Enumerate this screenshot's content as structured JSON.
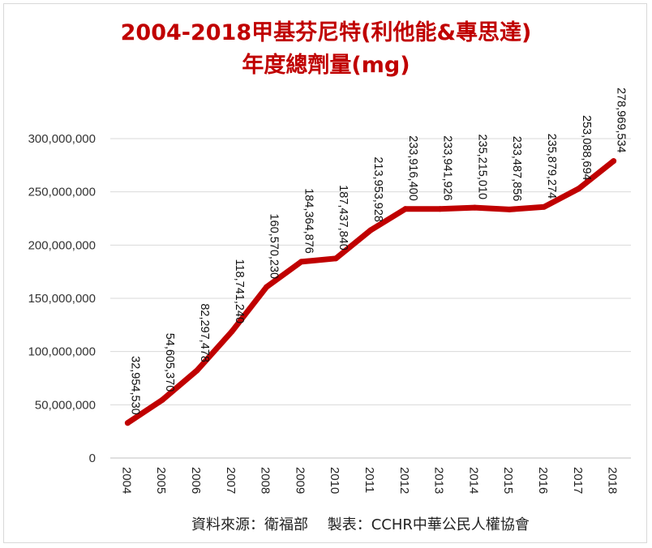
{
  "title_line1": "2004-2018甲基芬尼特(利他能&專思達)",
  "title_line2": "年度總劑量(mg)",
  "footer": "資料來源：衛福部　 製表：CCHR中華公民人權協會",
  "colors": {
    "line": "#c00000",
    "title": "#c00000",
    "grid": "#d9d9d9"
  },
  "chart_data": {
    "type": "line",
    "grid": true,
    "ylim": [
      0,
      300000000
    ],
    "yticks": [
      0,
      50000000,
      100000000,
      150000000,
      200000000,
      250000000,
      300000000
    ],
    "ytick_labels": [
      "0",
      "50,000,000",
      "100,000,000",
      "150,000,000",
      "200,000,000",
      "250,000,000",
      "300,000,000"
    ],
    "categories": [
      "2004",
      "2005",
      "2006",
      "2007",
      "2008",
      "2009",
      "2010",
      "2011",
      "2012",
      "2013",
      "2014",
      "2015",
      "2016",
      "2017",
      "2018"
    ],
    "values": [
      32954530,
      54605370,
      82297478,
      118741240,
      160570230,
      184364876,
      187437840,
      213953928,
      233916400,
      233941926,
      235215010,
      233487856,
      235879274,
      253088694,
      278969534
    ],
    "value_labels": [
      "32,954,530",
      "54,605,370",
      "82,297,478",
      "118,741,240",
      "160,570,230",
      "184,364,876",
      "187,437,840",
      "213,953,928",
      "233,916,400",
      "233,941,926",
      "235,215,010",
      "233,487,856",
      "235,879,274",
      "253,088,694",
      "278,969,534"
    ]
  }
}
